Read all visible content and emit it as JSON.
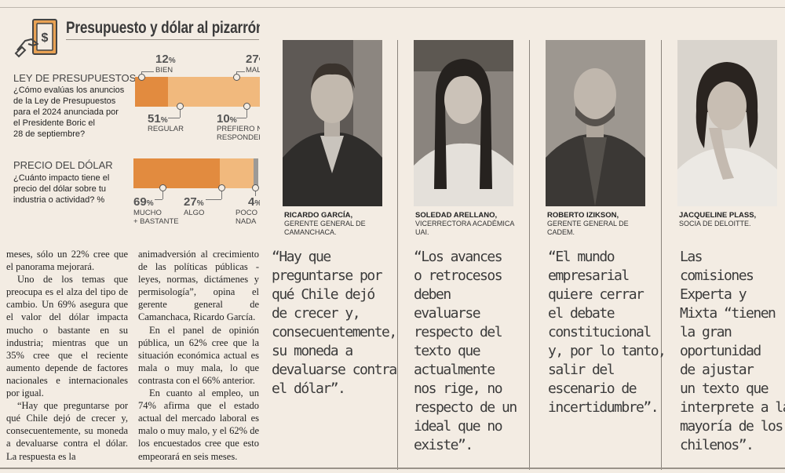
{
  "header": {
    "title": "Presupuesto y dólar al pizarrón",
    "logo_icon": "money-hand-icon"
  },
  "budget": {
    "heading": "LEY DE PRESUPUESTOS",
    "question": [
      "¿Cómo evalúas los anuncios",
      "de la Ley de Presupuestos",
      "para el 2024 anunciada por",
      "el Presidente Boric el",
      "28 de septiembre?"
    ],
    "categories": [
      {
        "pct": "12",
        "label": [
          "BIEN"
        ],
        "color": "#e28b3f",
        "value": 12
      },
      {
        "pct": "51",
        "label": [
          "REGULAR"
        ],
        "color": "#f1b97d",
        "value": 51
      },
      {
        "pct": "27",
        "label": [
          "MAL"
        ],
        "color": "#9c9a97",
        "value": 27
      },
      {
        "pct": "10",
        "label": [
          "PREFIERO NO",
          "RESPONDER"
        ],
        "color": "#d7d2cb",
        "value": 10
      }
    ]
  },
  "dollar": {
    "heading": "PRECIO DEL DÓLAR",
    "question": [
      "¿Cuánto impacto tiene el",
      "precio del dólar sobre tu",
      "industria o actividad? %"
    ],
    "categories": [
      {
        "pct": "69",
        "label": [
          "MUCHO",
          "+ BASTANTE"
        ],
        "color": "#e28b3f",
        "value": 69
      },
      {
        "pct": "27",
        "label": [
          "ALGO"
        ],
        "color": "#f1b97d",
        "value": 27
      },
      {
        "pct": "4",
        "label": [
          "POCO O",
          "NADA"
        ],
        "color": "#9c9a97",
        "value": 4
      }
    ]
  },
  "pct_sign": "%",
  "article": {
    "col1": [
      "meses, sólo un 22% cree que el panorama mejorará.",
      "Uno de los temas que preocupa es el alza del tipo de cambio. Un 69% asegura que el valor del dólar impacta mucho o bastante en su industria; mientras que un 35% cree que el reciente aumento depende de factores nacionales e internacionales por igual.",
      "“Hay que preguntarse por qué Chile dejó de crecer y, consecuentemente, su moneda a devaluarse contra el dólar. La respuesta es la"
    ],
    "col2": [
      "animadversión al crecimiento de las políticas públicas -leyes, normas, dictámenes y permisología”, opina el gerente general de Camanchaca, Ricardo García.",
      "En el panel de opinión pública, un 62% cree que la situación económica actual es mala o muy mala, lo que contrasta con el 66% anterior.",
      "En cuanto al empleo, un 74% afirma que el estado actual del mercado laboral es malo o muy malo, y el 62% de los encuestados cree que esto empeorará en seis meses."
    ]
  },
  "people": [
    {
      "name": "RICARDO GARCÍA,",
      "role": [
        "GERENTE GENERAL DE",
        "CAMANCHACA."
      ],
      "quote": [
        "“Hay que",
        "preguntarse por",
        "qué Chile dejó",
        "de crecer y,",
        "consecuentemente,",
        "su moneda a",
        "devaluarse contra",
        "el dólar”."
      ]
    },
    {
      "name": "SOLEDAD ARELLANO,",
      "role": [
        "VICERRECTORA ACADÉMICA",
        "UAI."
      ],
      "quote": [
        "“Los avances",
        "o retrocesos",
        "deben",
        "evaluarse",
        "respecto del",
        "texto que",
        "actualmente",
        "nos rige, no",
        "respecto de un",
        "ideal que no",
        "existe”."
      ]
    },
    {
      "name": "ROBERTO IZIKSON,",
      "role": [
        "GERENTE GENERAL DE",
        "CADEM."
      ],
      "quote": [
        "“El mundo",
        "empresarial",
        "quiere cerrar",
        "el debate",
        "constitucional",
        "y, por lo tanto,",
        "salir del",
        "escenario de",
        "incertidumbre”."
      ]
    },
    {
      "name": "JACQUELINE PLASS,",
      "role": [
        "SOCIA DE DELOITTE."
      ],
      "quote": [
        "Las",
        "comisiones",
        "Experta y",
        "Mixta “tienen",
        "la gran",
        "oportunidad",
        "de ajustar",
        "un texto que",
        "interprete a la",
        "mayoría de los",
        "chilenos”."
      ]
    }
  ]
}
